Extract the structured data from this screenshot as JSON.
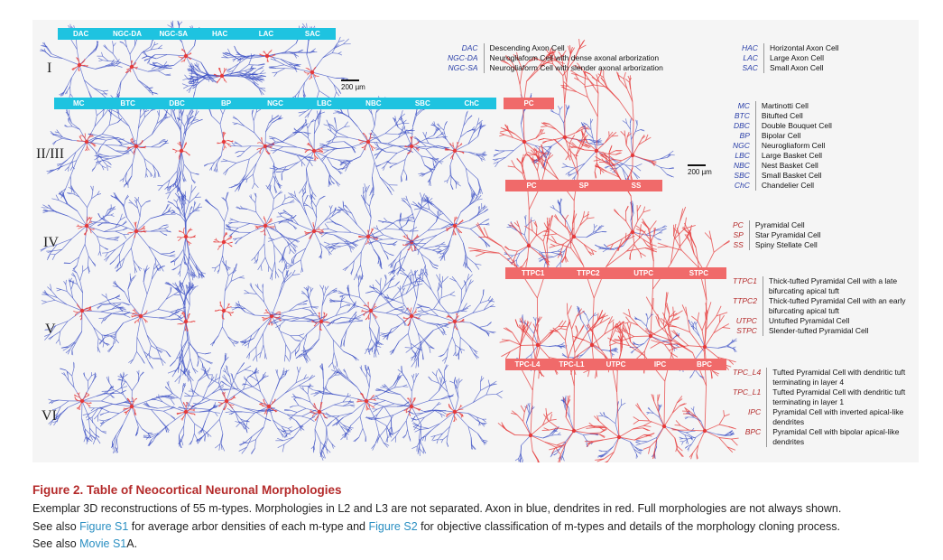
{
  "figure": {
    "rows": {
      "I": {
        "label": "I",
        "types": [
          "DAC",
          "NGC-DA",
          "NGC-SA",
          "HAC",
          "LAC",
          "SAC"
        ]
      },
      "II_III": {
        "label": "II/III",
        "types": [
          "MC",
          "BTC",
          "DBC",
          "BP",
          "NGC",
          "LBC",
          "NBC",
          "SBC",
          "ChC"
        ],
        "pc_types": [
          "PC"
        ]
      },
      "IV": {
        "label": "IV",
        "pc_types": [
          "PC",
          "SP",
          "SS"
        ]
      },
      "V": {
        "label": "V",
        "pc_types": [
          "TTPC1",
          "TTPC2",
          "UTPC",
          "STPC"
        ]
      },
      "VI": {
        "label": "VI",
        "pc_types": [
          "TPC-L4",
          "TPC-L1",
          "UTPC",
          "IPC",
          "BPC"
        ]
      }
    },
    "scale_bars": [
      "200 µm",
      "200 µm"
    ],
    "legend_I": [
      {
        "abbr": "DAC",
        "full": "Descending Axon Cell"
      },
      {
        "abbr": "NGC-DA",
        "full": "Neurogliaform Cell with dense axonal arborization"
      },
      {
        "abbr": "NGC-SA",
        "full": "Neurogliaform Cell with slender axonal arborization"
      }
    ],
    "legend_I_right": [
      {
        "abbr": "HAC",
        "full": "Horizontal Axon Cell"
      },
      {
        "abbr": "LAC",
        "full": "Large Axon Cell"
      },
      {
        "abbr": "SAC",
        "full": "Small Axon Cell"
      }
    ],
    "legend_II": [
      {
        "abbr": "MC",
        "full": "Martinotti Cell"
      },
      {
        "abbr": "BTC",
        "full": "Bitufted Cell"
      },
      {
        "abbr": "DBC",
        "full": "Double Bouquet Cell"
      },
      {
        "abbr": "BP",
        "full": "Bipolar Cell"
      },
      {
        "abbr": "NGC",
        "full": "Neurogliaform Cell"
      },
      {
        "abbr": "LBC",
        "full": "Large Basket Cell"
      },
      {
        "abbr": "NBC",
        "full": "Nest Basket Cell"
      },
      {
        "abbr": "SBC",
        "full": "Small Basket Cell"
      },
      {
        "abbr": "ChC",
        "full": "Chandelier Cell"
      }
    ],
    "legend_IV": [
      {
        "abbr": "PC",
        "full": "Pyramidal Cell"
      },
      {
        "abbr": "SP",
        "full": "Star Pyramidal Cell"
      },
      {
        "abbr": "SS",
        "full": "Spiny Stellate Cell"
      }
    ],
    "legend_V": [
      {
        "abbr": "TTPC1",
        "full": "Thick-tufted Pyramidal Cell with a late bifurcating apical tuft"
      },
      {
        "abbr": "TTPC2",
        "full": "Thick-tufted Pyramidal Cell with an early bifurcating apical tuft"
      },
      {
        "abbr": "UTPC",
        "full": "Untufted Pyramidal Cell"
      },
      {
        "abbr": "STPC",
        "full": "Slender-tufted Pyramidal Cell"
      }
    ],
    "legend_VI": [
      {
        "abbr": "TPC_L4",
        "full": "Tufted Pyramidal Cell with dendritic tuft terminating in layer 4"
      },
      {
        "abbr": "TPC_L1",
        "full": "Tufted Pyramidal Cell with dendritic tuft terminating in layer 1"
      },
      {
        "abbr": "IPC",
        "full": "Pyramidal Cell with inverted apical-like dendrites"
      },
      {
        "abbr": "BPC",
        "full": "Pyramidal Cell with bipolar apical-like dendrites"
      }
    ],
    "colors": {
      "axon": "#3b4fc4",
      "dendrite": "#e63a3a",
      "interneuron_bar": "#1ec3e0",
      "pyramidal_bar": "#f06a6a",
      "caption_title": "#b42a2a",
      "link": "#2a8fc2"
    }
  },
  "caption": {
    "title": "Figure 2.  Table of Neocortical Neuronal Morphologies",
    "line1": "Exemplar 3D reconstructions of 55 m-types. Morphologies in L2 and L3 are not separated. Axon in blue, dendrites in red. Full morphologies are not always shown.",
    "line2_a": "See also ",
    "link_s1": "Figure S1",
    "line2_b": " for average arbor densities of each m-type and ",
    "link_s2": "Figure S2",
    "line2_c": " for objective classification of m-types and details of the morphology cloning process.",
    "line3_a": "See also ",
    "link_movie": "Movie S1",
    "line3_b": "A."
  }
}
